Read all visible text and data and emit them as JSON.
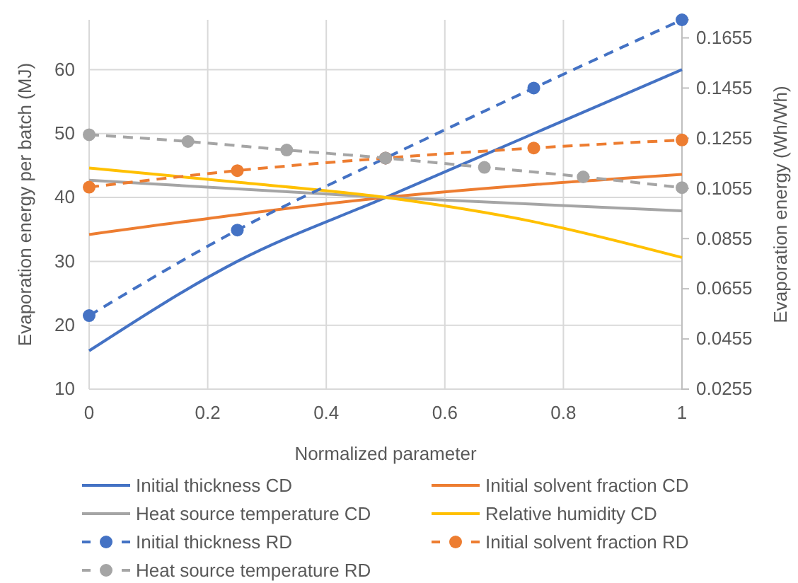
{
  "chart_data": {
    "type": "line",
    "xlabel": "Normalized parameter",
    "ylabel": "Evaporation energy  per batch (MJ)",
    "y2label": "Evaporation energy (Wh/Wh)",
    "xlim": [
      0,
      1
    ],
    "xticks": [
      0,
      0.2,
      0.4,
      0.6,
      0.8,
      1
    ],
    "ylim": [
      10,
      67.8
    ],
    "yticks": [
      10,
      20,
      30,
      40,
      50,
      60
    ],
    "y2lim": [
      0.0255,
      0.1727
    ],
    "y2ticks": [
      0.0255,
      0.0455,
      0.0655,
      0.0855,
      0.1055,
      0.1255,
      0.1455,
      0.1655
    ],
    "grid": true,
    "legend": "bottom",
    "series": [
      {
        "name": "Initial thickness CD",
        "color": "#4472c4",
        "x": [
          0,
          0.25,
          0.5,
          0.75,
          1
        ],
        "values": [
          16,
          30,
          40,
          50,
          60
        ],
        "line_style": "solid",
        "marker": "none"
      },
      {
        "name": "Initial solvent fraction CD",
        "color": "#ed7d31",
        "x": [
          0,
          0.5,
          1
        ],
        "values": [
          34.2,
          40,
          43.6
        ],
        "line_style": "solid",
        "marker": "none"
      },
      {
        "name": "Heat source temperature CD",
        "color": "#a5a5a5",
        "x": [
          0,
          0.5,
          1
        ],
        "values": [
          42.7,
          40,
          37.9
        ],
        "line_style": "solid",
        "marker": "none"
      },
      {
        "name": "Relative humidity CD",
        "color": "#ffc000",
        "x": [
          0,
          0.25,
          0.5,
          0.75,
          1
        ],
        "values": [
          44.6,
          42.4,
          40,
          36.2,
          30.6
        ],
        "line_style": "solid",
        "marker": "none"
      },
      {
        "name": "Initial thickness RD",
        "color": "#4472c4",
        "axis": "y2",
        "x": [
          0,
          0.25,
          0.5,
          0.75,
          1
        ],
        "values": [
          0.0548,
          0.0889,
          0.1176,
          0.1455,
          0.1727
        ],
        "line_style": "dashed",
        "marker": "circle"
      },
      {
        "name": "Initial solvent fraction RD",
        "color": "#ed7d31",
        "axis": "y2",
        "x": [
          0,
          0.25,
          0.5,
          0.75,
          1
        ],
        "values": [
          0.106,
          0.1126,
          0.1176,
          0.1216,
          0.1248
        ],
        "line_style": "dashed",
        "marker": "circle"
      },
      {
        "name": "Heat source temperature RD",
        "color": "#a5a5a5",
        "axis": "y2",
        "x": [
          0,
          0.1667,
          0.3333,
          0.5,
          0.6667,
          0.8333,
          1
        ],
        "values": [
          0.1269,
          0.1242,
          0.1208,
          0.1176,
          0.1139,
          0.1101,
          0.1058
        ],
        "line_style": "dashed",
        "marker": "circle"
      }
    ]
  }
}
